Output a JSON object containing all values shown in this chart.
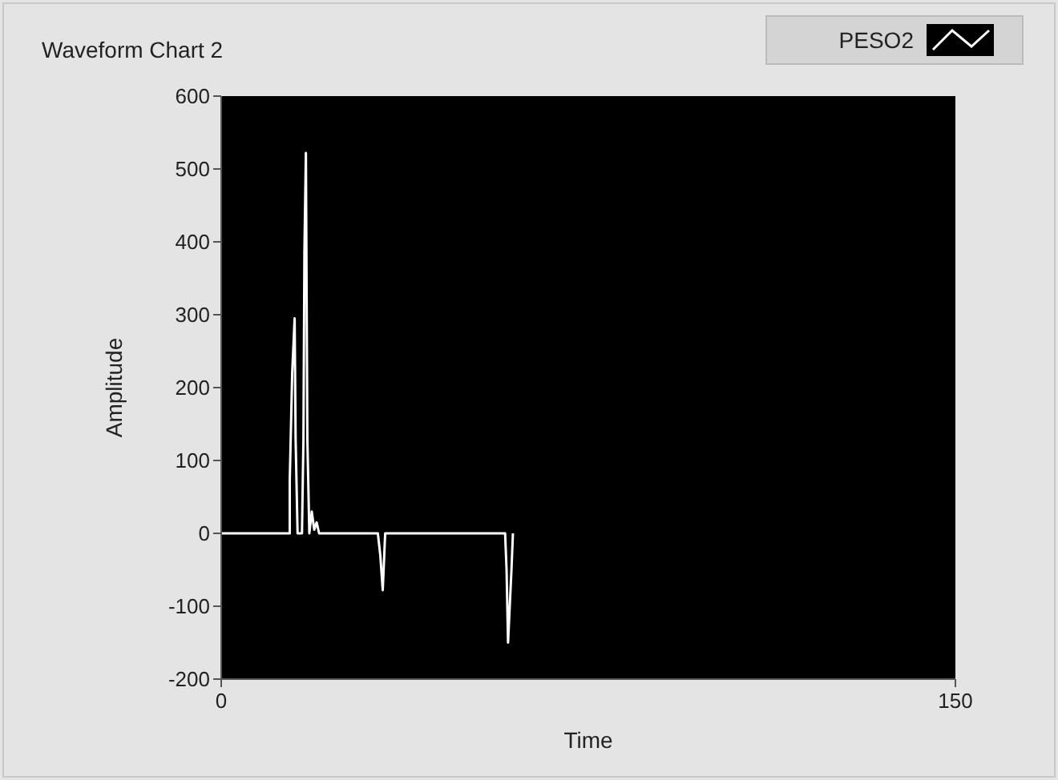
{
  "chart_data": {
    "type": "line",
    "title": "Waveform Chart 2",
    "xlabel": "Time",
    "ylabel": "Amplitude",
    "legend": "top right",
    "grid": false,
    "marker": "none",
    "line_style": "solid",
    "xlim": [
      0,
      150
    ],
    "xticks": [
      0,
      150
    ],
    "ylim": [
      -200,
      600
    ],
    "yticks": [
      -200,
      -100,
      0,
      100,
      200,
      300,
      400,
      500,
      600
    ],
    "series": [
      {
        "name": "PESO2",
        "color": "#ffffff",
        "x": [
          0,
          14,
          14,
          14.5,
          15,
          15.2,
          15.6,
          16.5,
          16.8,
          17,
          17.3,
          17.6,
          18,
          18.5,
          19,
          19.5,
          20,
          32,
          32.5,
          33,
          33.5,
          58,
          58.3,
          58.6,
          59.3,
          59.6
        ],
        "values": [
          0,
          0,
          72,
          220,
          295,
          130,
          0,
          0,
          130,
          387,
          522,
          130,
          0,
          30,
          5,
          15,
          0,
          0,
          -30,
          -78,
          0,
          0,
          -50,
          -150,
          -50,
          0
        ]
      }
    ]
  }
}
